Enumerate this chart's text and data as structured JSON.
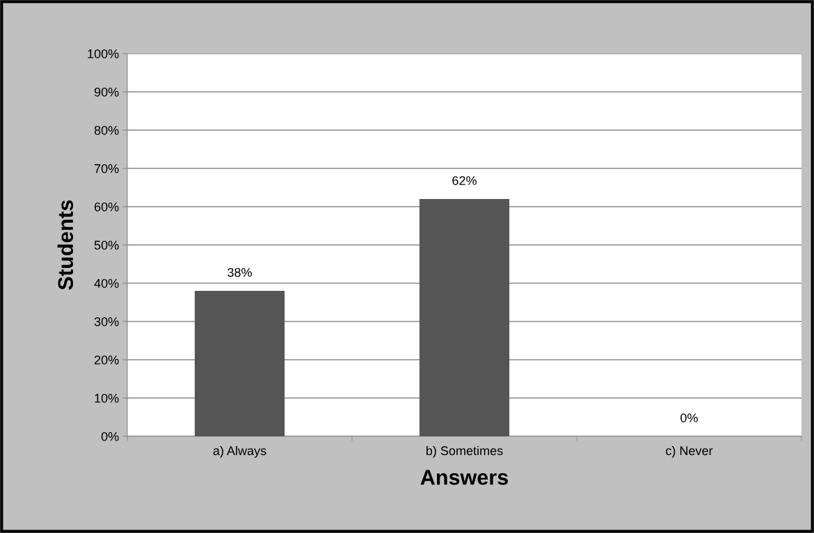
{
  "chart_data": {
    "type": "bar",
    "xlabel": "Answers",
    "ylabel": "Students",
    "categories": [
      "a) Always",
      "b) Sometimes",
      "c) Never"
    ],
    "values": [
      38,
      62,
      0
    ],
    "color": "#555555",
    "value_labels": [
      "38%",
      "62%",
      "0%"
    ],
    "ylim": [
      0,
      100
    ],
    "yticks": [
      {
        "value": 0,
        "label": "0%"
      },
      {
        "value": 10,
        "label": "10%"
      },
      {
        "value": 20,
        "label": "20%"
      },
      {
        "value": 30,
        "label": "30%"
      },
      {
        "value": 40,
        "label": "40%"
      },
      {
        "value": 50,
        "label": "50%"
      },
      {
        "value": 60,
        "label": "60%"
      },
      {
        "value": 70,
        "label": "70%"
      },
      {
        "value": 80,
        "label": "80%"
      },
      {
        "value": 90,
        "label": "90%"
      },
      {
        "value": 100,
        "label": "100%"
      }
    ],
    "grid": "y",
    "legend": false
  }
}
